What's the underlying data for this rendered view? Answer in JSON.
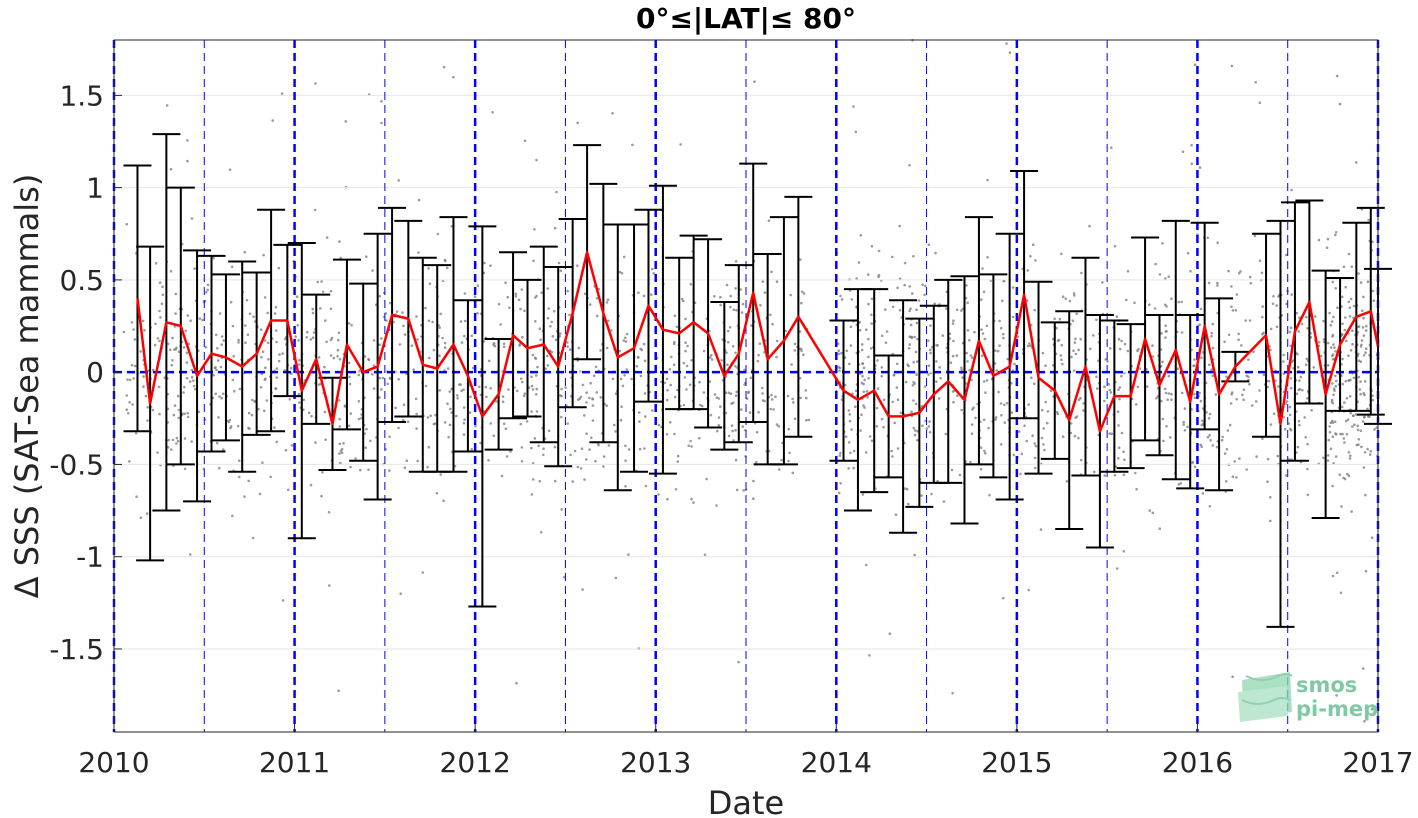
{
  "chart_data": {
    "type": "line",
    "title": "0°≤|LAT|≤ 80°",
    "xlabel": "Date",
    "ylabel": "Δ SSS (SAT-Sea mammals)",
    "xlim": [
      2010,
      2017
    ],
    "ylim": [
      -1.95,
      1.8
    ],
    "x_ticks": [
      2010,
      2011,
      2012,
      2013,
      2014,
      2015,
      2016,
      2017
    ],
    "x_tick_labels": [
      "2010",
      "2011",
      "2012",
      "2013",
      "2014",
      "2015",
      "2016",
      "2017"
    ],
    "y_ticks": [
      -1.5,
      -1,
      -0.5,
      0,
      0.5,
      1,
      1.5
    ],
    "y_tick_labels": [
      "-1.5",
      "-1",
      "-0.5",
      "0",
      "0.5",
      "1",
      "1.5"
    ],
    "grid": true,
    "zero_line": {
      "y": 0,
      "color": "#0000ff",
      "style": "dashed"
    },
    "year_lines": {
      "x": [
        2010,
        2011,
        2012,
        2013,
        2014,
        2015,
        2016,
        2017
      ],
      "color": "#0000ff",
      "style": "dashed"
    },
    "half_year_lines": {
      "x": [
        2010.5,
        2011.5,
        2012.5,
        2013.5,
        2014.5,
        2015.5,
        2016.5
      ],
      "color": "#0000ff",
      "style": "dashed"
    },
    "series": [
      {
        "kind": "monthly_mean_with_error_bars",
        "color": "#ff0000",
        "errorbar_color": "#000000",
        "x": [
          2010.13,
          2010.2,
          2010.29,
          2010.37,
          2010.46,
          2010.54,
          2010.62,
          2010.71,
          2010.79,
          2010.87,
          2010.96,
          2011.04,
          2011.12,
          2011.21,
          2011.29,
          2011.38,
          2011.46,
          2011.54,
          2011.63,
          2011.71,
          2011.79,
          2011.88,
          2011.96,
          2012.04,
          2012.13,
          2012.21,
          2012.29,
          2012.38,
          2012.46,
          2012.54,
          2012.62,
          2012.71,
          2012.79,
          2012.88,
          2012.96,
          2013.04,
          2013.13,
          2013.21,
          2013.29,
          2013.38,
          2013.46,
          2013.54,
          2013.62,
          2013.71,
          2013.79,
          2014.04,
          2014.12,
          2014.21,
          2014.29,
          2014.37,
          2014.46,
          2014.54,
          2014.62,
          2014.71,
          2014.79,
          2014.87,
          2014.96,
          2015.04,
          2015.12,
          2015.21,
          2015.29,
          2015.38,
          2015.46,
          2015.54,
          2015.63,
          2015.71,
          2015.79,
          2015.88,
          2015.96,
          2016.04,
          2016.12,
          2016.21,
          2016.38,
          2016.46,
          2016.54,
          2016.62,
          2016.71,
          2016.79,
          2016.88,
          2016.96,
          2017.0
        ],
        "y": [
          0.4,
          -0.17,
          0.27,
          0.25,
          -0.02,
          0.1,
          0.08,
          0.03,
          0.1,
          0.28,
          0.28,
          -0.1,
          0.07,
          -0.28,
          0.15,
          0.0,
          0.03,
          0.31,
          0.29,
          0.04,
          0.02,
          0.15,
          -0.02,
          -0.24,
          -0.12,
          0.2,
          0.13,
          0.15,
          0.03,
          0.32,
          0.65,
          0.32,
          0.08,
          0.13,
          0.36,
          0.23,
          0.21,
          0.27,
          0.21,
          -0.02,
          0.1,
          0.43,
          0.07,
          0.17,
          0.3,
          -0.1,
          -0.15,
          -0.1,
          -0.24,
          -0.24,
          -0.22,
          -0.12,
          -0.05,
          -0.15,
          0.17,
          -0.02,
          0.03,
          0.42,
          -0.03,
          -0.1,
          -0.26,
          0.03,
          -0.32,
          -0.13,
          -0.13,
          0.18,
          -0.07,
          0.12,
          -0.16,
          0.25,
          -0.12,
          0.03,
          0.2,
          -0.28,
          0.22,
          0.38,
          -0.12,
          0.15,
          0.3,
          0.33,
          0.14
        ],
        "err": [
          0.72,
          0.85,
          1.02,
          0.75,
          0.68,
          0.53,
          0.45,
          0.57,
          0.44,
          0.6,
          0.41,
          0.8,
          0.35,
          0.25,
          0.46,
          0.48,
          0.72,
          0.58,
          0.53,
          0.58,
          0.56,
          0.69,
          0.41,
          1.03,
          0.3,
          0.45,
          0.37,
          0.53,
          0.54,
          0.51,
          0.58,
          0.7,
          0.72,
          0.67,
          0.52,
          0.78,
          0.41,
          0.47,
          0.51,
          0.4,
          0.48,
          0.7,
          0.57,
          0.67,
          0.65,
          0.38,
          0.6,
          0.55,
          0.33,
          0.63,
          0.51,
          0.48,
          0.55,
          0.67,
          0.67,
          0.55,
          0.72,
          0.67,
          0.52,
          0.37,
          0.59,
          0.59,
          0.63,
          0.41,
          0.39,
          0.55,
          0.38,
          0.7,
          0.47,
          0.56,
          0.52,
          0.08,
          0.55,
          1.1,
          0.7,
          0.55,
          0.67,
          0.36,
          0.51,
          0.56,
          0.42
        ]
      }
    ],
    "scatter_points": "gray individual match-up differences, dense around 0 with spread up to ±1.8"
  },
  "logo": {
    "line1": "smos",
    "line2": "pi-mep",
    "color": "#7fc9a4"
  }
}
